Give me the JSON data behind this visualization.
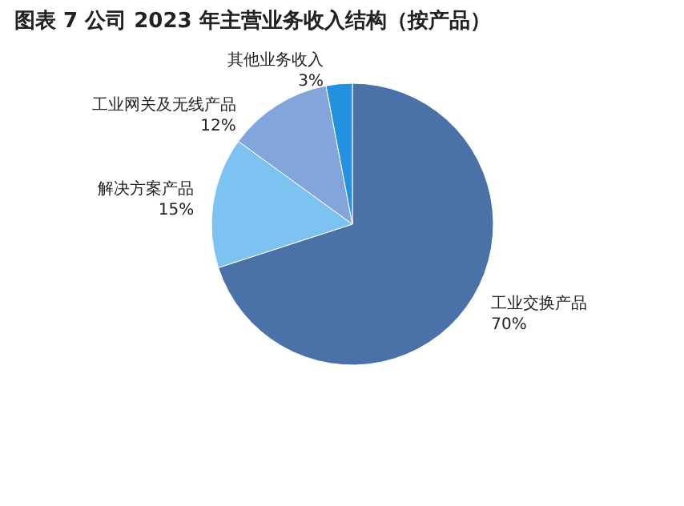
{
  "chart_data": {
    "type": "pie",
    "title": "图表 7 公司 2023 年主营业务收入结构（按产品）",
    "categories": [
      "工业交换产品",
      "解决方案产品",
      "工业网关及无线产品",
      "其他业务收入"
    ],
    "values": [
      70,
      15,
      12,
      3
    ],
    "value_labels": [
      "70%",
      "15%",
      "12%",
      "3%"
    ],
    "colors": [
      "#4a72a9",
      "#7cc3f2",
      "#82a6dc",
      "#2490e0"
    ],
    "legend": false
  }
}
